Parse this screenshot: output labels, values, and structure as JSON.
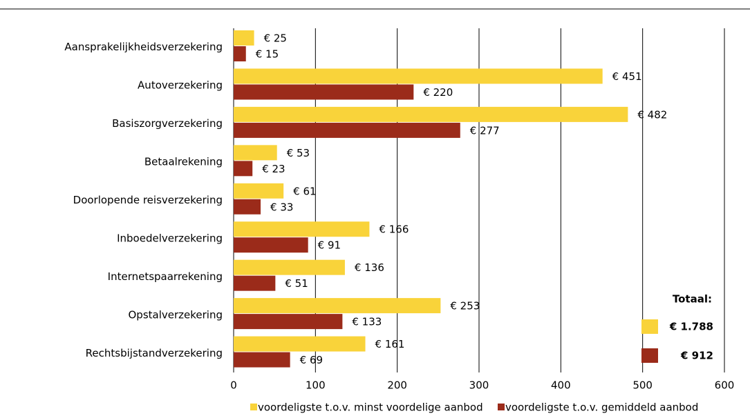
{
  "chart_data": {
    "type": "bar",
    "categories": [
      "Aansprakelijkheidsverzekering",
      "Autoverzekering",
      "Basiszorgverzekering",
      "Betaalrekening",
      "Doorlopende reisverzekering",
      "Inboedelverzekering",
      "Internetspaarrekening",
      "Opstalverzekering",
      "Rechtsbijstandverzekering"
    ],
    "series": [
      {
        "name": "voordeligste t.o.v. minst voordelige aanbod",
        "color": "#f9d33a",
        "values": [
          25,
          451,
          482,
          53,
          61,
          166,
          136,
          253,
          161
        ],
        "value_labels": [
          "€ 25",
          "€ 451",
          "€ 482",
          "€ 53",
          "€ 61",
          "€ 166",
          "€ 136",
          "€ 253",
          "€ 161"
        ]
      },
      {
        "name": "voordeligste t.o.v. gemiddeld aanbod",
        "color": "#9b2b1a",
        "values": [
          15,
          220,
          277,
          23,
          33,
          91,
          51,
          133,
          69
        ],
        "value_labels": [
          "€ 15",
          "€ 220",
          "€ 277",
          "€ 23",
          "€ 33",
          "€ 91",
          "€ 51",
          "€ 133",
          "€ 69"
        ]
      }
    ],
    "xlim": [
      0,
      600
    ],
    "xticks": [
      0,
      100,
      200,
      300,
      400,
      500,
      600
    ],
    "grid": true,
    "legend": "bottom",
    "totals": {
      "title": "Totaal:",
      "values": [
        1788,
        912
      ],
      "value_labels": [
        "€ 1.788",
        "€ 912"
      ]
    }
  }
}
